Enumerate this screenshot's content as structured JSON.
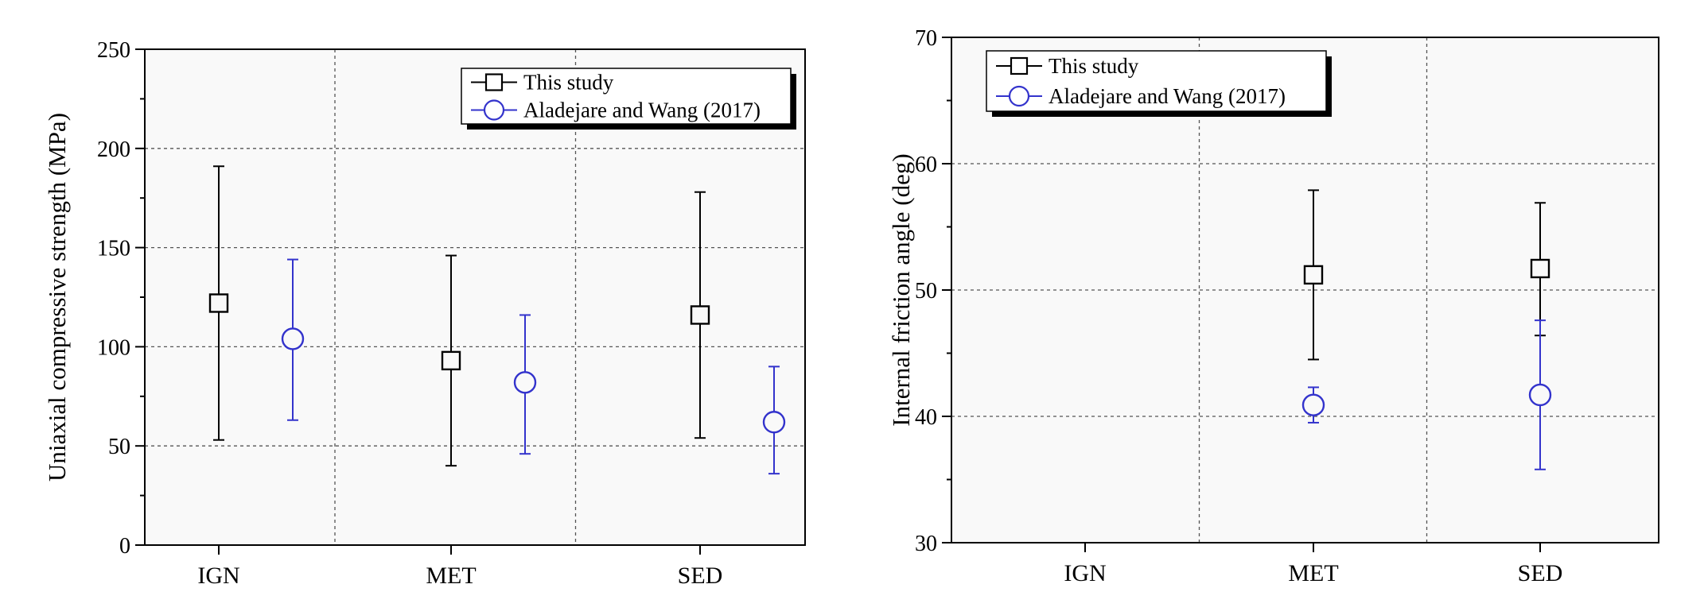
{
  "colors": {
    "this_study": "#000000",
    "aladejare": "#3333cc",
    "plot_background": "#f9f9f9",
    "grid": "#555555"
  },
  "chart_data": [
    {
      "type": "scatter",
      "error_bars": true,
      "categories": [
        "IGN",
        "MET",
        "SED"
      ],
      "xlabel": "",
      "ylabel": "Uniaxial compressive strength (MPa)",
      "ylim": [
        0,
        250
      ],
      "yticks": [
        "0",
        "50",
        "100",
        "150",
        "200",
        "250"
      ],
      "grid": true,
      "legend_position": "top-right",
      "series": [
        {
          "name": "This study",
          "marker": "square",
          "values": [
            122,
            93,
            116
          ],
          "lower": [
            53,
            40,
            54
          ],
          "upper": [
            191,
            146,
            178
          ]
        },
        {
          "name": "Aladejare and Wang (2017)",
          "marker": "circle",
          "values": [
            104,
            82,
            62
          ],
          "lower": [
            63,
            46,
            36
          ],
          "upper": [
            144,
            116,
            90
          ]
        }
      ]
    },
    {
      "type": "scatter",
      "error_bars": true,
      "categories": [
        "IGN",
        "MET",
        "SED"
      ],
      "xlabel": "",
      "ylabel": "Internal friction angle (deg)",
      "ylim": [
        30,
        70
      ],
      "yticks": [
        "30",
        "40",
        "50",
        "60",
        "70"
      ],
      "grid": true,
      "legend_position": "top-left",
      "series": [
        {
          "name": "This study",
          "marker": "square",
          "values": [
            null,
            51.2,
            51.7
          ],
          "lower": [
            null,
            44.5,
            46.4
          ],
          "upper": [
            null,
            57.9,
            56.9
          ]
        },
        {
          "name": "Aladejare and Wang (2017)",
          "marker": "circle",
          "values": [
            null,
            40.9,
            41.7
          ],
          "lower": [
            null,
            39.5,
            35.8
          ],
          "upper": [
            null,
            42.3,
            47.6
          ]
        }
      ]
    }
  ]
}
